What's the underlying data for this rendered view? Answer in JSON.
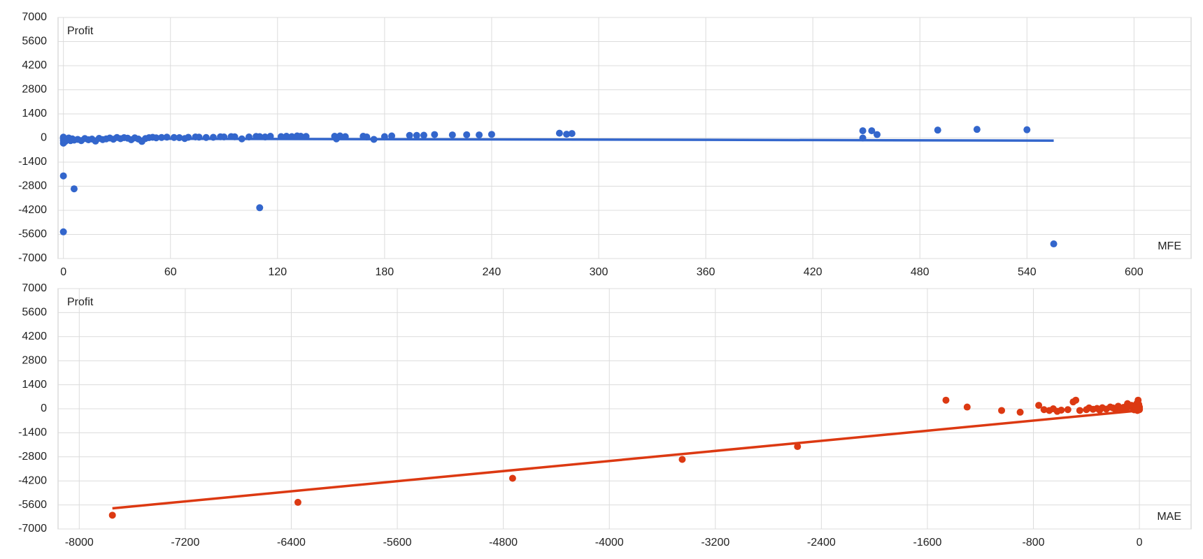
{
  "chart_data": [
    {
      "type": "scatter",
      "x_label": "MFE",
      "y_label": "Profit",
      "color": "#3366cc",
      "grid": true,
      "xlim": [
        -3,
        632
      ],
      "ylim": [
        -7000,
        7000
      ],
      "xticks": [
        0,
        60,
        120,
        180,
        240,
        300,
        360,
        420,
        480,
        540,
        600
      ],
      "yticks": [
        7000,
        5600,
        4200,
        2800,
        1400,
        0,
        -1400,
        -2800,
        -4200,
        -5600,
        -7000
      ],
      "x": [
        0,
        0,
        0,
        0,
        1,
        2,
        3,
        4,
        5,
        6,
        8,
        10,
        12,
        14,
        16,
        18,
        20,
        22,
        24,
        26,
        28,
        30,
        32,
        34,
        36,
        38,
        40,
        42,
        44,
        46,
        48,
        50,
        52,
        55,
        58,
        62,
        65,
        68,
        70,
        74,
        76,
        80,
        84,
        88,
        90,
        94,
        96,
        100,
        104,
        108,
        110,
        113,
        116,
        122,
        125,
        128,
        131,
        133,
        136,
        152,
        153,
        155,
        158,
        168,
        170,
        174,
        180,
        184,
        194,
        198,
        202,
        208,
        218,
        226,
        233,
        240,
        278,
        282,
        285,
        448,
        448,
        453,
        456,
        490,
        512,
        540,
        0,
        6,
        0,
        110,
        555
      ],
      "values": [
        -300,
        -150,
        -50,
        50,
        -200,
        -100,
        0,
        -150,
        -50,
        -120,
        -80,
        -150,
        -30,
        -100,
        -60,
        -180,
        -20,
        -90,
        -50,
        0,
        -70,
        30,
        -40,
        20,
        -10,
        -100,
        10,
        -60,
        -200,
        -30,
        20,
        40,
        10,
        30,
        50,
        30,
        20,
        -30,
        40,
        60,
        50,
        30,
        40,
        70,
        60,
        80,
        70,
        -50,
        60,
        90,
        80,
        60,
        100,
        80,
        100,
        80,
        120,
        100,
        90,
        100,
        -50,
        120,
        80,
        100,
        60,
        -80,
        80,
        120,
        150,
        150,
        160,
        200,
        180,
        190,
        180,
        210,
        280,
        220,
        260,
        0,
        420,
        420,
        200,
        460,
        500,
        480,
        -2200,
        -2950,
        -5450,
        -4050,
        -6150
      ],
      "trendline": {
        "x": [
          0,
          555
        ],
        "values": [
          -30,
          -150
        ]
      }
    },
    {
      "type": "scatter",
      "x_label": "MAE",
      "y_label": "Profit",
      "color": "#dc3912",
      "grid": true,
      "xlim": [
        -8160,
        390
      ],
      "ylim": [
        -7000,
        7000
      ],
      "xticks": [
        -8000,
        -7200,
        -6400,
        -5600,
        -4800,
        -4000,
        -3200,
        -2400,
        -1600,
        -800,
        0
      ],
      "yticks": [
        7000,
        5600,
        4200,
        2800,
        1400,
        0,
        -1400,
        -2800,
        -4200,
        -5600,
        -7000
      ],
      "x": [
        -7750,
        -6350,
        -4730,
        -3450,
        -2580,
        -1460,
        -1300,
        -1040,
        -900,
        -760,
        -720,
        -680,
        -650,
        -620,
        -590,
        -540,
        -500,
        -480,
        -450,
        -400,
        -380,
        -350,
        -320,
        -300,
        -280,
        -250,
        -220,
        -200,
        -180,
        -160,
        -140,
        -120,
        -100,
        -90,
        -80,
        -60,
        -50,
        -40,
        -30,
        -20,
        -10,
        -5,
        0,
        0,
        0,
        -15,
        -25
      ],
      "values": [
        -6200,
        -5450,
        -4050,
        -2950,
        -2200,
        500,
        100,
        -100,
        -200,
        200,
        -50,
        -100,
        0,
        -150,
        -80,
        -50,
        400,
        500,
        -100,
        -50,
        50,
        -30,
        20,
        -80,
        60,
        -20,
        100,
        50,
        -40,
        150,
        0,
        80,
        -20,
        300,
        120,
        200,
        40,
        -60,
        100,
        300,
        500,
        250,
        100,
        0,
        -50,
        -100,
        50
      ],
      "trendline": {
        "x": [
          -7750,
          0
        ],
        "values": [
          -5800,
          -100
        ]
      }
    }
  ]
}
